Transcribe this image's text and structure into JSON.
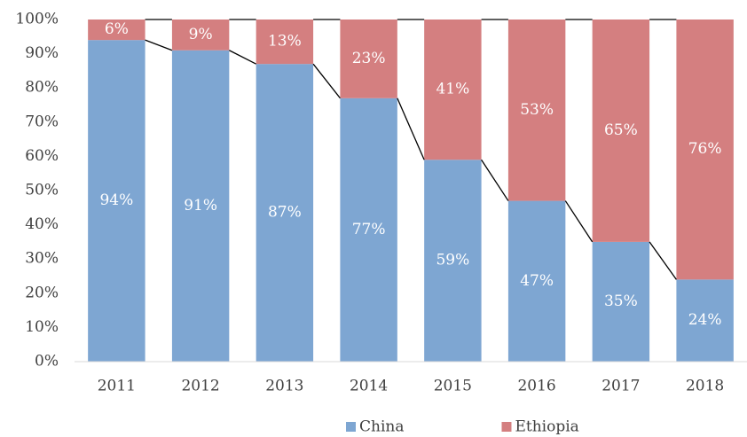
{
  "chart_data": {
    "type": "stacked-bar-100",
    "categories": [
      "2011",
      "2012",
      "2013",
      "2014",
      "2015",
      "2016",
      "2017",
      "2018"
    ],
    "series": [
      {
        "name": "China",
        "color": "#7ea6d2",
        "values": [
          94,
          91,
          87,
          77,
          59,
          47,
          35,
          24
        ],
        "value_labels": [
          "94%",
          "91%",
          "87%",
          "77%",
          "59%",
          "47%",
          "35%",
          "24%"
        ]
      },
      {
        "name": "Ethiopia",
        "color": "#d47f80",
        "values": [
          6,
          9,
          13,
          23,
          41,
          53,
          65,
          76
        ],
        "value_labels": [
          "6%",
          "9%",
          "13%",
          "23%",
          "41%",
          "53%",
          "65%",
          "76%"
        ]
      }
    ],
    "ylim": [
      0,
      100
    ],
    "yticks": [
      {
        "value": 0,
        "label": "0%"
      },
      {
        "value": 10,
        "label": "10%"
      },
      {
        "value": 20,
        "label": "20%"
      },
      {
        "value": 30,
        "label": "30%"
      },
      {
        "value": 40,
        "label": "40%"
      },
      {
        "value": 50,
        "label": "50%"
      },
      {
        "value": 60,
        "label": "60%"
      },
      {
        "value": 70,
        "label": "70%"
      },
      {
        "value": 80,
        "label": "80%"
      },
      {
        "value": 90,
        "label": "90%"
      },
      {
        "value": 100,
        "label": "100%"
      }
    ],
    "legend": "bottom"
  }
}
